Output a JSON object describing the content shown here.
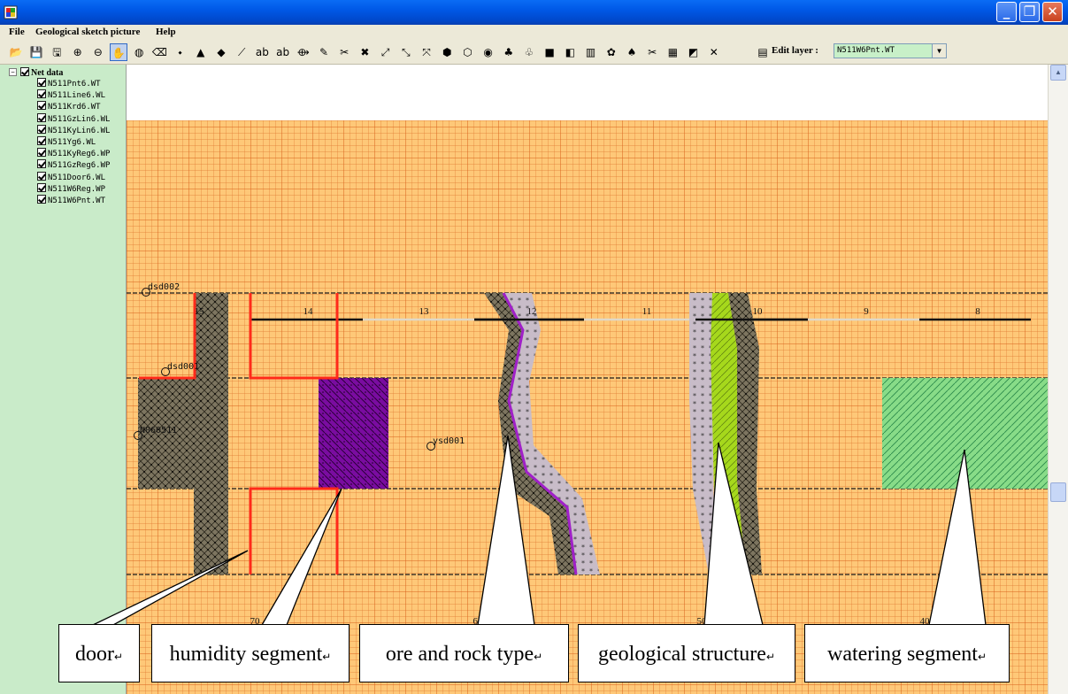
{
  "window": {
    "minimize_glyph": "_",
    "restore_glyph": "❐",
    "close_glyph": "✕"
  },
  "menu": {
    "items": [
      "File",
      "Geological sketch picture",
      "Help"
    ]
  },
  "toolbar": {
    "icons": [
      "open-icon",
      "save-icon",
      "save-as-icon",
      "zoom-in-icon",
      "zoom-out-icon",
      "pan-hand-icon",
      "globe-icon",
      "eraser-icon",
      "point-icon",
      "add-region-icon",
      "edit-region-icon",
      "line-icon",
      "text-abc-icon",
      "delete-text-icon",
      "move-icon",
      "pencil-icon",
      "cut-line-icon",
      "delete-node-icon",
      "join-line-icon",
      "edit-line-icon",
      "break-line-icon",
      "rock-icon",
      "rock-edit-icon",
      "sample-icon",
      "tree-icon",
      "tree-edit-icon",
      "fill-black-icon",
      "fill-red-icon",
      "fill-stripe-icon",
      "cluster-icon",
      "paint-icon",
      "scissors-icon",
      "grid-icon",
      "palette-icon",
      "calc-icon",
      "close-x-icon"
    ],
    "active_icon": "pan-hand-icon",
    "edit_layer_label": "Edit layer :",
    "edit_layer_value": "N511W6Pnt.WT"
  },
  "tree": {
    "root": "Net data",
    "layers": [
      "N511Pnt6.WT",
      "N511Line6.WL",
      "N511Krd6.WT",
      "N511GzLin6.WL",
      "N511KyLin6.WL",
      "N511Yg6.WL",
      "N511KyReg6.WP",
      "N511GzReg6.WP",
      "N511Door6.WL",
      "N511W6Reg.WP",
      "N511W6Pnt.WT"
    ]
  },
  "map": {
    "segment_numbers": [
      "15",
      "14",
      "13",
      "12",
      "11",
      "10",
      "9",
      "8"
    ],
    "point_labels": [
      "dsd002",
      "dsd001",
      "N060511",
      "ysd001"
    ],
    "scale_labels": [
      "70",
      "60",
      "50",
      "40"
    ],
    "colors": {
      "grid_bg": "#fec878",
      "grid_fine": "#e07830",
      "grid_major": "#d8601a",
      "door_red": "#ff2a1a",
      "rock_gray": "#7d7560",
      "purple_region": "#7a0ca0",
      "ore_purple_line": "#a020c8",
      "lime_structure": "#a6d81c",
      "water_green": "#88dc88",
      "speckle_pink": "#c8bcc8"
    }
  },
  "callouts": [
    "door",
    "humidity segment",
    "ore and rock type",
    "geological structure",
    "watering segment"
  ],
  "return_mark": "↵"
}
